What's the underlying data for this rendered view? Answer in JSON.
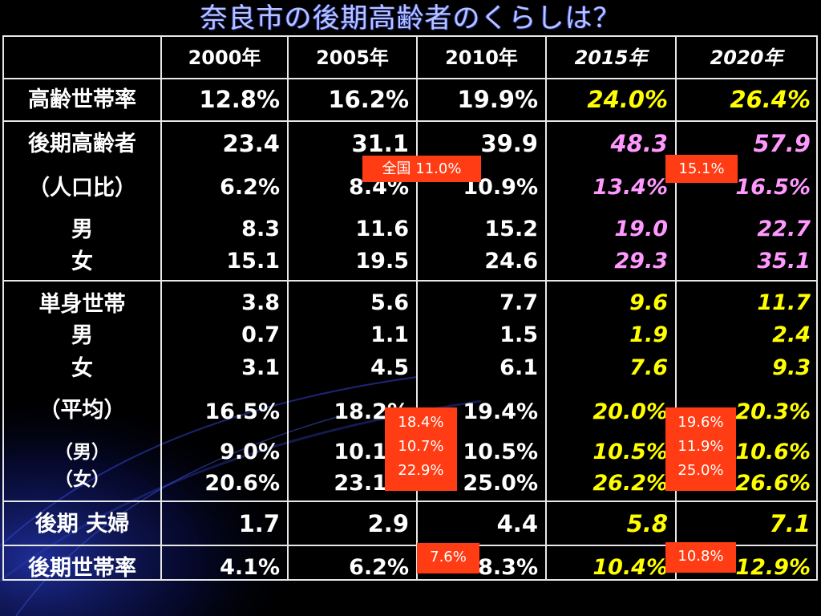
{
  "title": "奈良市の後期高齢者のくらしは？",
  "colors": {
    "header_white": "#ffffff",
    "projection_yellow": "#ffff00",
    "projection_pink": "#ff99ff",
    "badge_red": "#ff3c14"
  },
  "header": [
    "2000年",
    "2005年",
    "2010年",
    "2015年",
    "2020年"
  ],
  "rows": {
    "aging_rate": {
      "label": "高齢世帯率",
      "values": [
        "12.8%",
        "16.2%",
        "19.9%",
        "24.0%",
        "26.4%"
      ]
    },
    "late_elderly": {
      "label": "後期高齢者",
      "values": [
        "23.4",
        "31.1",
        "39.9",
        "48.3",
        "57.9"
      ]
    },
    "population_ratio": {
      "label": "（人口比）",
      "values": [
        "6.2%",
        "8.4%",
        "10.9%",
        "13.4%",
        "16.5%"
      ]
    },
    "male": {
      "label": "男",
      "values": [
        "8.3",
        "11.6",
        "15.2",
        "19.0",
        "22.7"
      ]
    },
    "female": {
      "label": "女",
      "values": [
        "15.1",
        "19.5",
        "24.6",
        "29.3",
        "35.1"
      ]
    },
    "single_household": {
      "label": "単身世帯",
      "values": [
        "3.8",
        "5.6",
        "7.7",
        "9.6",
        "11.7"
      ]
    },
    "single_male": {
      "label": "男",
      "values": [
        "0.7",
        "1.1",
        "1.5",
        "1.9",
        "2.4"
      ]
    },
    "single_female": {
      "label": "女",
      "values": [
        "3.1",
        "4.5",
        "6.1",
        "7.6",
        "9.3"
      ]
    },
    "average": {
      "label": "（平均）",
      "values": [
        "16.5%",
        "18.2%",
        "19.4%",
        "20.0%",
        "20.3%"
      ]
    },
    "average_male": {
      "label": "（男）",
      "values": [
        "9.0%",
        "10.1%",
        "10.5%",
        "10.5%",
        "10.6%"
      ]
    },
    "average_female": {
      "label": "（女）",
      "values": [
        "20.6%",
        "23.1%",
        "25.0%",
        "26.2%",
        "26.6%"
      ]
    },
    "late_couple": {
      "label": "後期 夫婦",
      "values": [
        "1.7",
        "2.9",
        "4.4",
        "5.8",
        "7.1"
      ]
    },
    "late_household_rate": {
      "label": "後期世帯率",
      "values": [
        "4.1%",
        "6.2%",
        "8.3%",
        "10.4%",
        "12.9%"
      ]
    }
  },
  "badges": {
    "national_2005": "全国 11.0%",
    "national_2015": "15.1%",
    "avg_2005": [
      "18.4%",
      "10.7%",
      "22.9%"
    ],
    "avg_2015": [
      "19.6%",
      "11.9%",
      "25.0%"
    ],
    "household_2005": "7.6%",
    "household_2015": "10.8%"
  }
}
